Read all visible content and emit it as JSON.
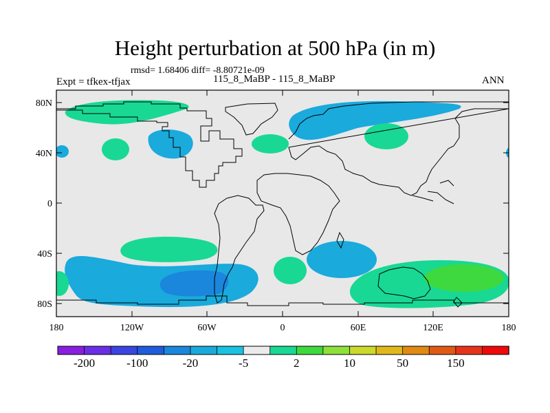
{
  "map": {
    "title": "Height perturbation at 500 hPa (in m)",
    "stats": "rmsd= 1.68406 diff= -8.80721e-09",
    "left_label": "Expt = tfkex-tfjax",
    "center_label": "115_8_MaBP - 115_8_MaBP",
    "right_label": "ANN",
    "lat_ticks": [
      "80N",
      "40N",
      "0",
      "40S",
      "80S"
    ],
    "lon_ticks": [
      "180",
      "120W",
      "60W",
      "0",
      "60E",
      "120E",
      "180"
    ]
  },
  "colorbar": {
    "colors": [
      "#8a1ee0",
      "#6a2ee6",
      "#3a44e0",
      "#1e5cdc",
      "#1a86dc",
      "#1aaadc",
      "#18c2e0",
      "#ebebeb",
      "#18d894",
      "#3ed93e",
      "#8ee03a",
      "#cbd82c",
      "#e0b81c",
      "#e08a14",
      "#e05a14",
      "#e6341a",
      "#ee0a0a"
    ],
    "labels": [
      "-200",
      "-100",
      "-20",
      "-5",
      "2",
      "10",
      "50",
      "150"
    ]
  },
  "chart_data": {
    "type": "heatmap",
    "title": "Height perturbation at 500 hPa (in m)",
    "xlabel": "",
    "ylabel": "",
    "xlim": [
      -180,
      180
    ],
    "ylim": [
      -90,
      90
    ],
    "regions": [
      {
        "sign": "positive",
        "level": "2 to 10",
        "lon": -120,
        "lat": 72
      },
      {
        "sign": "positive",
        "level": "2 to 10",
        "lon": -146,
        "lat": 42
      },
      {
        "sign": "negative",
        "level": "-5 to 2",
        "lon": -92,
        "lat": 48
      },
      {
        "sign": "positive",
        "level": "2 to 10",
        "lon": -23,
        "lat": 46
      },
      {
        "sign": "negative",
        "level": "-5 to 2",
        "lon": 45,
        "lat": 70
      },
      {
        "sign": "positive",
        "level": "2 to 10",
        "lon": 84,
        "lat": 53
      },
      {
        "sign": "positive",
        "level": "2 to 10",
        "lon": -86,
        "lat": -35
      },
      {
        "sign": "negative",
        "level": "-5 to 2",
        "lon": -100,
        "lat": -65
      },
      {
        "sign": "negative",
        "level": "-20 to -5",
        "lon": -80,
        "lat": -62
      },
      {
        "sign": "positive",
        "level": "2 to 10",
        "lon": 6,
        "lat": -52
      },
      {
        "sign": "negative",
        "level": "-5 to 2",
        "lon": 46,
        "lat": -45
      },
      {
        "sign": "positive",
        "level": "2 to 10",
        "lon": 108,
        "lat": -66
      },
      {
        "sign": "positive",
        "level": "10 to 50",
        "lon": 140,
        "lat": -62
      }
    ]
  }
}
